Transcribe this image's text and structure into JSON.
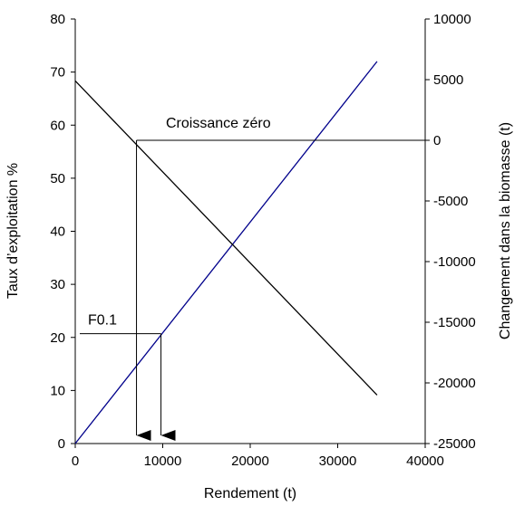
{
  "chart_data": {
    "type": "line",
    "xlabel": "Rendement (t)",
    "ylabel_left": "Taux d’exploitation %",
    "ylabel_right": "Changement dans la biomasse (t)",
    "xlim": [
      0,
      40000
    ],
    "ylim_left": [
      0,
      80
    ],
    "ylim_right": [
      -25000,
      10000
    ],
    "x_ticks": [
      "0",
      "10000",
      "20000",
      "30000",
      "40000"
    ],
    "y_left_ticks": [
      "0",
      "10",
      "20",
      "30",
      "40",
      "50",
      "60",
      "70",
      "80"
    ],
    "y_right_ticks": [
      "-25000",
      "-20000",
      "-15000",
      "-10000",
      "-5000",
      "0",
      "5000",
      "10000"
    ],
    "colors": {
      "exploitation": "#00008b",
      "biomass": "#000000",
      "guides": "#000000"
    },
    "series": [
      {
        "axis": "left",
        "x": [
          0,
          34500
        ],
        "y": [
          0,
          72
        ]
      },
      {
        "axis": "right",
        "x": [
          0,
          34500
        ],
        "y": [
          4900,
          -21000
        ]
      }
    ],
    "annotations": {
      "zero_growth": {
        "text": "Croissance zéro",
        "x": 7000,
        "y_right": 0
      },
      "f01": {
        "text": "F0.1",
        "x": 9800,
        "y_left": 20.7
      }
    }
  }
}
